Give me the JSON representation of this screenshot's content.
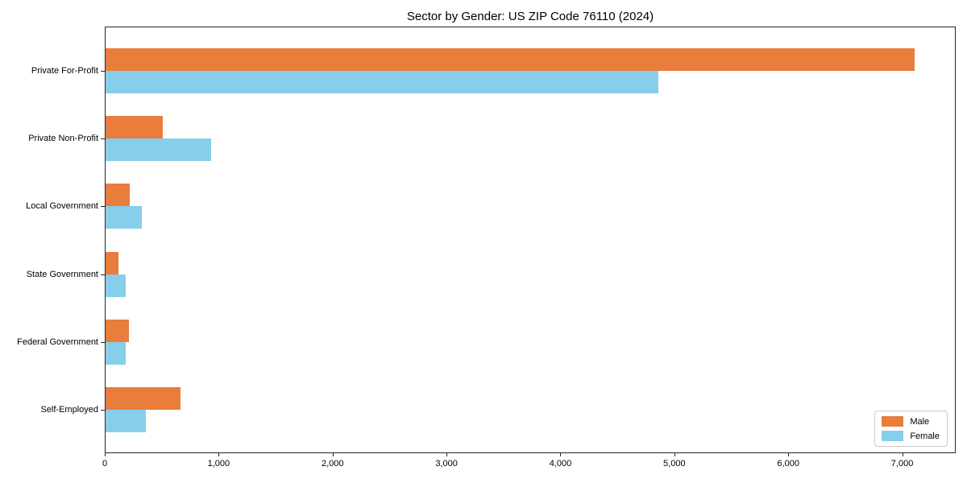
{
  "chart": {
    "title": "Sector by Gender: US ZIP Code 76110 (2024)"
  },
  "chart_data": {
    "type": "bar",
    "orientation": "horizontal",
    "title": "Sector by Gender: US ZIP Code 76110 (2024)",
    "xlabel": "",
    "ylabel": "",
    "categories": [
      "Private For-Profit",
      "Private Non-Profit",
      "Local Government",
      "State Government",
      "Federal Government",
      "Self-Employed"
    ],
    "series": [
      {
        "name": "Male",
        "color": "#E87D3C",
        "values": [
          7100,
          500,
          215,
          110,
          205,
          660
        ]
      },
      {
        "name": "Female",
        "color": "#87CEEB",
        "values": [
          4850,
          930,
          320,
          180,
          175,
          355
        ]
      }
    ],
    "xlim": [
      0,
      7470
    ],
    "xticks": [
      0,
      1000,
      2000,
      3000,
      4000,
      5000,
      6000,
      7000
    ],
    "xtick_labels": [
      "0",
      "1,000",
      "2,000",
      "3,000",
      "4,000",
      "5,000",
      "6,000",
      "7,000"
    ],
    "legend_position": "lower right",
    "grid": false,
    "background": "#ffffff",
    "spine_color": "#262626"
  }
}
